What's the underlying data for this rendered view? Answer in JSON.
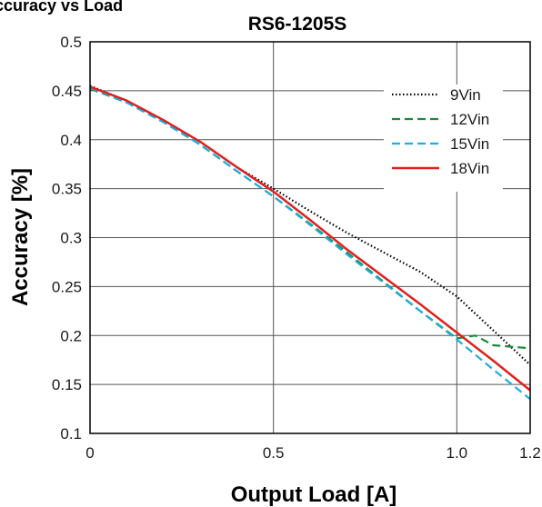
{
  "chart_data": {
    "type": "line",
    "supertitle": "ccuracy vs Load",
    "title": "RS6-1205S",
    "xlabel": "Output Load [A]",
    "ylabel": "Accuracy [%]",
    "xlim": [
      0,
      1.2
    ],
    "ylim": [
      0.1,
      0.5
    ],
    "x_ticks": [
      0,
      0.5,
      1.0,
      1.2
    ],
    "x_tick_labels": [
      "0",
      "0.5",
      "1.0",
      "1.2"
    ],
    "y_ticks": [
      0.1,
      0.15,
      0.2,
      0.25,
      0.3,
      0.35,
      0.4,
      0.45,
      0.5
    ],
    "y_tick_labels": [
      "0.1",
      "0.15",
      "0.2",
      "0.25",
      "0.3",
      "0.35",
      "0.4",
      "0.45",
      "0.5"
    ],
    "grid": true,
    "legend_position": "top-right",
    "series": [
      {
        "name": "9Vin",
        "color": "#000000",
        "style": "dotted",
        "x": [
          0,
          0.1,
          0.2,
          0.3,
          0.4,
          0.5,
          0.6,
          0.7,
          0.8,
          0.9,
          1.0,
          1.1,
          1.2
        ],
        "y": [
          0.455,
          0.44,
          0.42,
          0.398,
          0.372,
          0.35,
          0.327,
          0.305,
          0.285,
          0.265,
          0.24,
          0.205,
          0.17
        ]
      },
      {
        "name": "12Vin",
        "color": "#1a8a3a",
        "style": "dashed",
        "x": [
          0,
          0.1,
          0.2,
          0.3,
          0.4,
          0.5,
          0.6,
          0.7,
          0.8,
          0.9,
          1.0,
          1.05,
          1.1,
          1.2
        ],
        "y": [
          0.452,
          0.438,
          0.418,
          0.395,
          0.368,
          0.342,
          0.314,
          0.285,
          0.255,
          0.225,
          0.197,
          0.2,
          0.19,
          0.187
        ]
      },
      {
        "name": "15Vin",
        "color": "#1eaee0",
        "style": "dashed",
        "x": [
          0,
          0.1,
          0.2,
          0.3,
          0.4,
          0.5,
          0.6,
          0.7,
          0.8,
          0.9,
          1.0,
          1.1,
          1.2
        ],
        "y": [
          0.453,
          0.438,
          0.418,
          0.395,
          0.368,
          0.342,
          0.313,
          0.283,
          0.254,
          0.225,
          0.196,
          0.165,
          0.135
        ]
      },
      {
        "name": "18Vin",
        "color": "#e02020",
        "style": "solid",
        "x": [
          0,
          0.1,
          0.2,
          0.3,
          0.4,
          0.5,
          0.6,
          0.7,
          0.8,
          0.9,
          1.0,
          1.1,
          1.2
        ],
        "y": [
          0.454,
          0.44,
          0.42,
          0.398,
          0.372,
          0.347,
          0.318,
          0.288,
          0.26,
          0.232,
          0.203,
          0.174,
          0.144
        ]
      }
    ]
  }
}
